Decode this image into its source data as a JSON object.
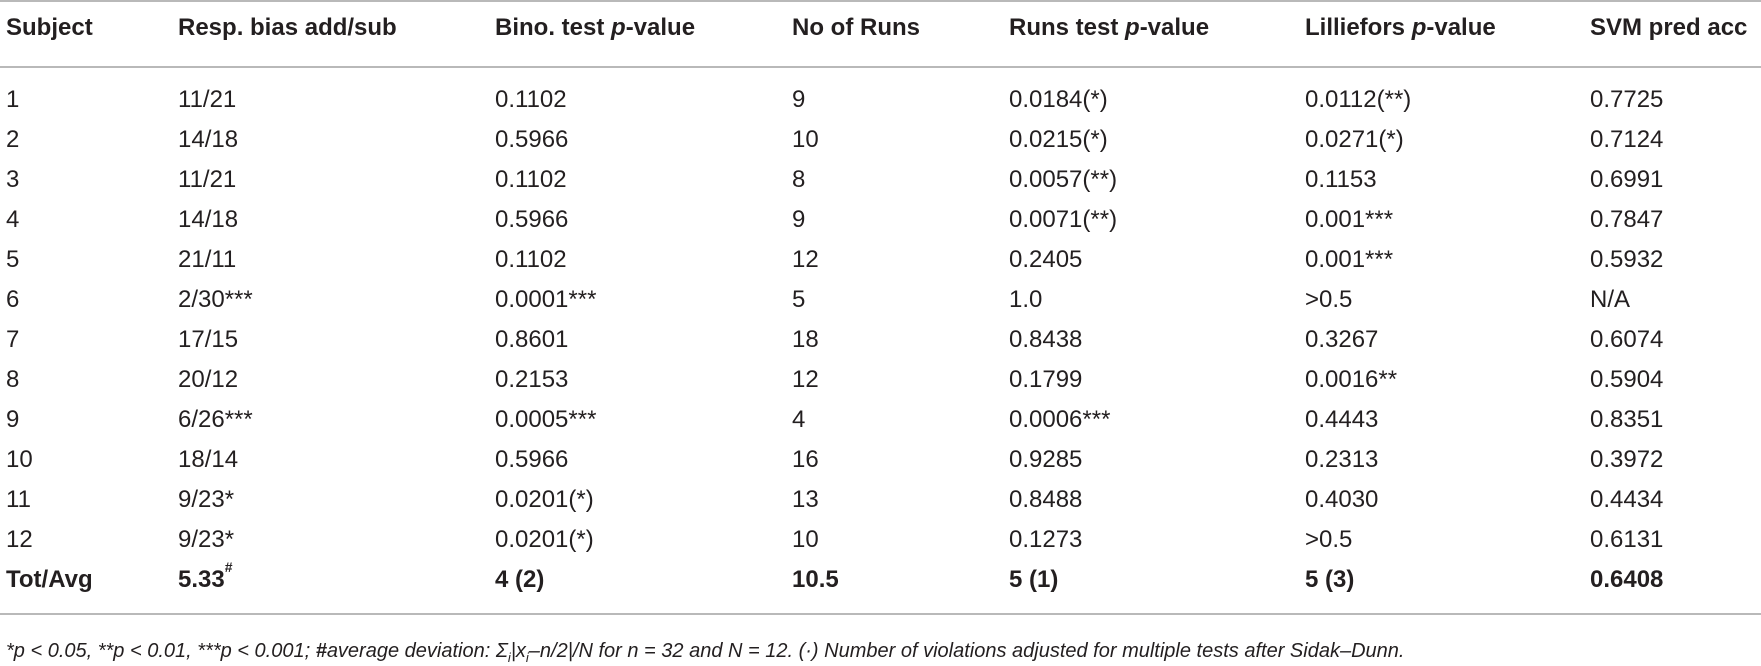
{
  "table": {
    "headers": [
      {
        "pre": "Subject",
        "em": "",
        "post": ""
      },
      {
        "pre": "Resp. bias add/sub",
        "em": "",
        "post": ""
      },
      {
        "pre": "Bino. test ",
        "em": "p",
        "post": "-value"
      },
      {
        "pre": "No of Runs",
        "em": "",
        "post": ""
      },
      {
        "pre": "Runs test ",
        "em": "p",
        "post": "-value"
      },
      {
        "pre": "Lilliefors ",
        "em": "p",
        "post": "-value"
      },
      {
        "pre": "SVM pred acc",
        "em": "",
        "post": ""
      }
    ],
    "rows": [
      [
        "1",
        "11/21",
        "0.1102",
        "9",
        "0.0184(*)",
        "0.0112(**)",
        "0.7725"
      ],
      [
        "2",
        "14/18",
        "0.5966",
        "10",
        "0.0215(*)",
        "0.0271(*)",
        "0.7124"
      ],
      [
        "3",
        "11/21",
        "0.1102",
        "8",
        "0.0057(**)",
        "0.1153",
        "0.6991"
      ],
      [
        "4",
        "14/18",
        "0.5966",
        "9",
        "0.0071(**)",
        "0.001***",
        "0.7847"
      ],
      [
        "5",
        "21/11",
        "0.1102",
        "12",
        "0.2405",
        "0.001***",
        "0.5932"
      ],
      [
        "6",
        "2/30***",
        "0.0001***",
        "5",
        "1.0",
        ">0.5",
        "N/A"
      ],
      [
        "7",
        "17/15",
        "0.8601",
        "18",
        "0.8438",
        "0.3267",
        "0.6074"
      ],
      [
        "8",
        "20/12",
        "0.2153",
        "12",
        "0.1799",
        "0.0016**",
        "0.5904"
      ],
      [
        "9",
        "6/26***",
        "0.0005***",
        "4",
        "0.0006***",
        "0.4443",
        "0.8351"
      ],
      [
        "10",
        "18/14",
        "0.5966",
        "16",
        "0.9285",
        "0.2313",
        "0.3972"
      ],
      [
        "11",
        "9/23*",
        "0.0201(*)",
        "13",
        "0.8488",
        "0.4030",
        "0.4434"
      ],
      [
        "12",
        "9/23*",
        "0.0201(*)",
        "10",
        "0.1273",
        ">0.5",
        "0.6131"
      ]
    ],
    "total": {
      "label": "Tot/Avg",
      "bias": "5.33",
      "bias_mark": "#",
      "bino": "4 (2)",
      "runs": "10.5",
      "runs_test": "5 (1)",
      "lilliefors": "5 (3)",
      "svm": "0.6408"
    }
  },
  "footnote": {
    "part1": "*p < 0.05, **p < 0.01, ***p < 0.001; ",
    "mark": "#",
    "part2": "average deviation: Σ",
    "sub_i": "i",
    "part3": "|x",
    "sub_i2": "i",
    "part4": "–n/2|/N for n = 32 and N = 12. (·) Number of violations adjusted for multiple tests after Sidak–Dunn."
  }
}
